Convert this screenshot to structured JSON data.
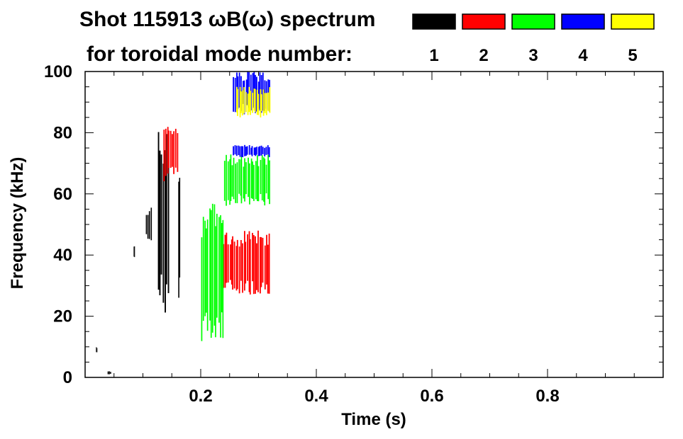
{
  "chart_data": {
    "type": "heatmap",
    "title": "Shot 115913 ωB(ω) spectrum",
    "subtitle": "for toroidal mode number:",
    "xlabel": "Time (s)",
    "ylabel": "Frequency (kHz)",
    "xlim": [
      0.0,
      1.0
    ],
    "ylim": [
      0,
      100
    ],
    "xticks": [
      0.2,
      0.4,
      0.6,
      0.8
    ],
    "xtick_labels": [
      "0.2",
      "0.4",
      "0.6",
      "0.8"
    ],
    "yticks": [
      0,
      20,
      40,
      60,
      80,
      100
    ],
    "ytick_labels": [
      "0",
      "20",
      "40",
      "60",
      "80",
      "100"
    ],
    "grid": false,
    "legend": {
      "placement": "top-right",
      "entries": [
        {
          "label": "1",
          "color": "#000000"
        },
        {
          "label": "2",
          "color": "#ff0000"
        },
        {
          "label": "3",
          "color": "#00ff00"
        },
        {
          "label": "4",
          "color": "#0000ff"
        },
        {
          "label": "5",
          "color": "#ffff00"
        }
      ]
    },
    "series": [
      {
        "name": "n=1",
        "color": "#000000",
        "regions": [
          {
            "t0": 0.125,
            "t1": 0.145,
            "f0": 20,
            "f1": 82
          },
          {
            "t0": 0.105,
            "t1": 0.115,
            "f0": 44,
            "f1": 56
          },
          {
            "t0": 0.083,
            "t1": 0.086,
            "f0": 39,
            "f1": 43
          },
          {
            "t0": 0.16,
            "t1": 0.165,
            "f0": 22,
            "f1": 68
          },
          {
            "t0": 0.018,
            "t1": 0.021,
            "f0": 8,
            "f1": 10
          },
          {
            "t0": 0.038,
            "t1": 0.045,
            "f0": 1,
            "f1": 2
          }
        ]
      },
      {
        "name": "n=2",
        "color": "#ff0000",
        "regions": [
          {
            "t0": 0.235,
            "t1": 0.32,
            "f0": 27,
            "f1": 48
          },
          {
            "t0": 0.135,
            "t1": 0.16,
            "f0": 64,
            "f1": 84
          }
        ]
      },
      {
        "name": "n=3",
        "color": "#00ff00",
        "regions": [
          {
            "t0": 0.2,
            "t1": 0.24,
            "f0": 11,
            "f1": 57
          },
          {
            "t0": 0.24,
            "t1": 0.32,
            "f0": 56,
            "f1": 73
          }
        ]
      },
      {
        "name": "n=4",
        "color": "#0000ff",
        "regions": [
          {
            "t0": 0.255,
            "t1": 0.32,
            "f0": 86,
            "f1": 100
          },
          {
            "t0": 0.255,
            "t1": 0.32,
            "f0": 72,
            "f1": 76
          }
        ]
      },
      {
        "name": "n=5",
        "color": "#ffff00",
        "regions": [
          {
            "t0": 0.26,
            "t1": 0.32,
            "f0": 85,
            "f1": 95
          }
        ]
      }
    ]
  }
}
